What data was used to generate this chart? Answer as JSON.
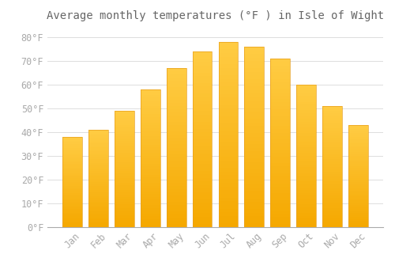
{
  "title": "Average monthly temperatures (°F ) in Isle of Wight",
  "months": [
    "Jan",
    "Feb",
    "Mar",
    "Apr",
    "May",
    "Jun",
    "Jul",
    "Aug",
    "Sep",
    "Oct",
    "Nov",
    "Dec"
  ],
  "values": [
    38,
    41,
    49,
    58,
    67,
    74,
    78,
    76,
    71,
    60,
    51,
    43
  ],
  "bar_color_top": "#FFCC44",
  "bar_color_bottom": "#F5A800",
  "bar_edge_color": "#E8A020",
  "background_color": "#FFFFFF",
  "grid_color": "#DDDDDD",
  "ylim": [
    0,
    84
  ],
  "yticks": [
    0,
    10,
    20,
    30,
    40,
    50,
    60,
    70,
    80
  ],
  "title_fontsize": 10,
  "tick_fontsize": 8.5,
  "tick_label_color": "#AAAAAA",
  "title_color": "#666666",
  "bar_width": 0.75
}
